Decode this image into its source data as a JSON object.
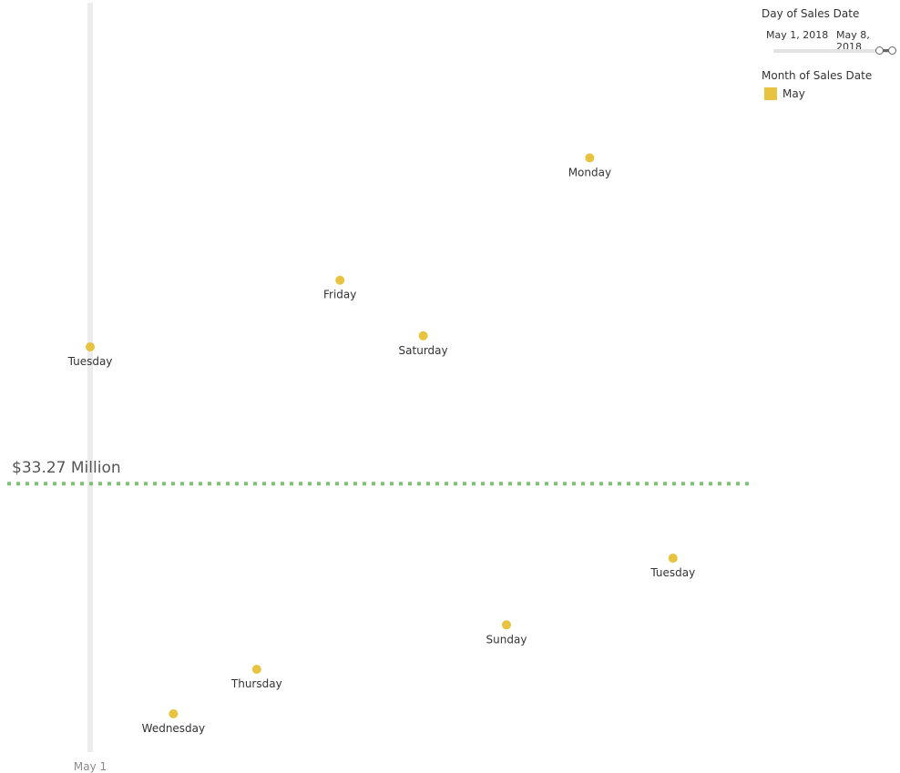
{
  "chart_data": {
    "type": "scatter",
    "x_tick_labels": [
      "May 1"
    ],
    "points": [
      {
        "label": "Tuesday",
        "date": "May 1, 2018",
        "y": 34.5
      },
      {
        "label": "Wednesday",
        "date": "May 2, 2018",
        "y": 31.2
      },
      {
        "label": "Thursday",
        "date": "May 3, 2018",
        "y": 31.6
      },
      {
        "label": "Friday",
        "date": "May 4, 2018",
        "y": 35.1
      },
      {
        "label": "Saturday",
        "date": "May 5, 2018",
        "y": 34.6
      },
      {
        "label": "Sunday",
        "date": "May 6, 2018",
        "y": 32.0
      },
      {
        "label": "Monday",
        "date": "May 7, 2018",
        "y": 36.2
      },
      {
        "label": "Tuesday",
        "date": "May 8, 2018",
        "y": 32.6
      }
    ],
    "reference_line": {
      "value": 33.27,
      "label": "$33.27 Million",
      "style": "dotted",
      "color": "#7cc176"
    },
    "mark_color": "#e8c33f",
    "highlight_band_color": "#ececec",
    "grid": false,
    "legend_position": "top-right"
  },
  "legend": {
    "day_filter": {
      "title": "Day of Sales Date",
      "start": "May 1, 2018",
      "end": "May 8, 2018"
    },
    "month": {
      "title": "Month of Sales Date",
      "items": [
        {
          "label": "May",
          "color": "#e8c33f"
        }
      ]
    }
  }
}
